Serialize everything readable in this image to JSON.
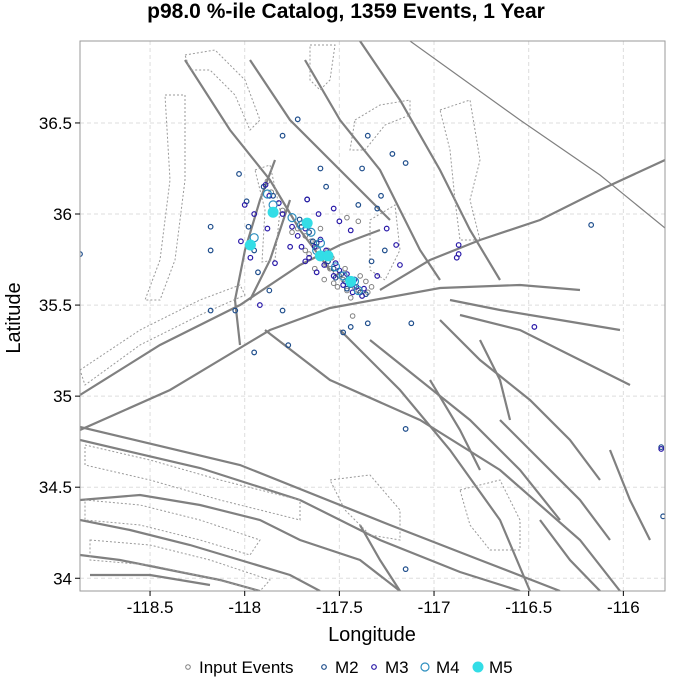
{
  "chart_data": {
    "type": "scatter",
    "title": "p98.0 %-ile Catalog, 1359 Events, 1 Year",
    "xlabel": "Longitude",
    "ylabel": "Latitude",
    "xlim": [
      -118.87,
      -115.78
    ],
    "ylim": [
      33.93,
      36.95
    ],
    "xticks": [
      -118.5,
      -118,
      -117.5,
      -117,
      -116.5,
      -116
    ],
    "yticks": [
      34,
      34.5,
      35,
      35.5,
      36,
      36.5
    ],
    "xtick_labels": [
      "-118.5",
      "-118",
      "-117.5",
      "-117",
      "-116.5",
      "-116"
    ],
    "ytick_labels": [
      "34",
      "34.5",
      "35",
      "35.5",
      "36",
      "36.5"
    ],
    "grid": true,
    "legend_position": "bottom-center",
    "series": [
      {
        "name": "Input Events",
        "color": "#808080",
        "marker": "open-circle-small",
        "points": [
          [
            -117.62,
            35.82
          ],
          [
            -117.58,
            35.75
          ],
          [
            -117.55,
            35.7
          ],
          [
            -117.5,
            35.66
          ],
          [
            -117.45,
            35.62
          ],
          [
            -117.4,
            35.58
          ],
          [
            -117.68,
            35.88
          ],
          [
            -117.7,
            35.95
          ],
          [
            -117.38,
            35.55
          ],
          [
            -117.42,
            35.6
          ],
          [
            -117.48,
            35.64
          ],
          [
            -117.52,
            35.68
          ],
          [
            -117.57,
            35.72
          ],
          [
            -117.6,
            35.78
          ],
          [
            -117.65,
            35.85
          ],
          [
            -117.72,
            35.92
          ],
          [
            -117.35,
            35.57
          ],
          [
            -117.33,
            35.6
          ],
          [
            -117.46,
            35.58
          ],
          [
            -117.53,
            35.62
          ],
          [
            -117.43,
            35.44
          ],
          [
            -117.6,
            35.92
          ],
          [
            -117.66,
            35.78
          ],
          [
            -117.56,
            35.8
          ],
          [
            -117.88,
            36.18
          ],
          [
            -117.86,
            36.12
          ],
          [
            -117.4,
            35.96
          ],
          [
            -117.46,
            35.98
          ],
          [
            -117.5,
            35.66
          ],
          [
            -117.58,
            35.64
          ],
          [
            -117.63,
            35.7
          ],
          [
            -117.44,
            35.54
          ],
          [
            -117.36,
            35.63
          ],
          [
            -117.75,
            35.9
          ],
          [
            -117.8,
            36.02
          ],
          [
            -117.54,
            35.76
          ],
          [
            -117.47,
            35.7
          ],
          [
            -117.68,
            35.8
          ],
          [
            -117.51,
            35.6
          ],
          [
            -117.39,
            35.66
          ]
        ]
      },
      {
        "name": "M2",
        "color": "#1f4e8c",
        "marker": "open-circle",
        "points": [
          [
            -117.62,
            35.84
          ],
          [
            -117.56,
            35.74
          ],
          [
            -117.49,
            35.67
          ],
          [
            -117.44,
            35.61
          ],
          [
            -117.39,
            35.57
          ],
          [
            -117.66,
            35.9
          ],
          [
            -117.71,
            35.97
          ],
          [
            -117.58,
            35.77
          ],
          [
            -117.53,
            35.7
          ],
          [
            -117.47,
            35.63
          ],
          [
            -117.64,
            35.85
          ],
          [
            -117.7,
            35.93
          ],
          [
            -117.52,
            35.65
          ],
          [
            -117.46,
            35.59
          ],
          [
            -117.36,
            35.56
          ],
          [
            -117.9,
            36.15
          ],
          [
            -117.85,
            36.1
          ],
          [
            -117.99,
            36.07
          ],
          [
            -118.03,
            36.22
          ],
          [
            -117.98,
            35.93
          ],
          [
            -117.95,
            35.8
          ],
          [
            -117.93,
            35.68
          ],
          [
            -117.87,
            35.58
          ],
          [
            -117.8,
            35.47
          ],
          [
            -117.77,
            35.28
          ],
          [
            -117.95,
            35.24
          ],
          [
            -118.18,
            35.93
          ],
          [
            -118.18,
            35.8
          ],
          [
            -118.18,
            35.47
          ],
          [
            -118.05,
            35.47
          ],
          [
            -117.4,
            36.05
          ],
          [
            -117.3,
            36.03
          ],
          [
            -117.28,
            36.1
          ],
          [
            -117.22,
            36.33
          ],
          [
            -117.15,
            36.28
          ],
          [
            -117.6,
            36.25
          ],
          [
            -117.57,
            36.15
          ],
          [
            -117.8,
            36.43
          ],
          [
            -117.72,
            36.52
          ],
          [
            -117.38,
            36.25
          ],
          [
            -117.35,
            36.43
          ],
          [
            -117.33,
            35.74
          ],
          [
            -117.26,
            35.8
          ],
          [
            -117.12,
            35.4
          ],
          [
            -117.15,
            34.82
          ],
          [
            -117.15,
            34.05
          ],
          [
            -116.17,
            35.94
          ],
          [
            -115.8,
            34.72
          ],
          [
            -115.79,
            34.34
          ],
          [
            -117.35,
            35.4
          ],
          [
            -117.44,
            35.38
          ],
          [
            -117.48,
            35.35
          ],
          [
            -118.87,
            35.78
          ],
          [
            -117.67,
            36.08
          ]
        ]
      },
      {
        "name": "M3",
        "color": "#2a1aa8",
        "marker": "open-circle",
        "points": [
          [
            -117.6,
            35.86
          ],
          [
            -117.55,
            35.76
          ],
          [
            -117.5,
            35.69
          ],
          [
            -117.45,
            35.64
          ],
          [
            -117.41,
            35.6
          ],
          [
            -117.68,
            35.92
          ],
          [
            -117.63,
            35.82
          ],
          [
            -117.58,
            35.72
          ],
          [
            -117.53,
            35.66
          ],
          [
            -117.48,
            35.61
          ],
          [
            -117.43,
            35.57
          ],
          [
            -117.38,
            35.55
          ],
          [
            -117.89,
            36.16
          ],
          [
            -117.87,
            36.1
          ],
          [
            -117.8,
            36.0
          ],
          [
            -117.75,
            35.93
          ],
          [
            -117.72,
            35.88
          ],
          [
            -117.57,
            35.8
          ],
          [
            -117.52,
            35.73
          ],
          [
            -117.46,
            35.67
          ],
          [
            -117.42,
            35.64
          ],
          [
            -117.37,
            35.59
          ],
          [
            -117.7,
            35.82
          ],
          [
            -117.66,
            35.76
          ],
          [
            -118.0,
            36.05
          ],
          [
            -117.67,
            36.08
          ],
          [
            -117.61,
            36.0
          ],
          [
            -117.25,
            35.92
          ],
          [
            -117.2,
            35.83
          ],
          [
            -117.18,
            35.72
          ],
          [
            -116.87,
            35.78
          ],
          [
            -116.87,
            35.83
          ],
          [
            -116.88,
            35.76
          ],
          [
            -117.53,
            36.03
          ],
          [
            -116.47,
            35.38
          ],
          [
            -117.62,
            35.68
          ],
          [
            -117.84,
            35.73
          ],
          [
            -118.02,
            35.85
          ],
          [
            -117.95,
            36.0
          ],
          [
            -117.88,
            35.92
          ],
          [
            -117.97,
            35.76
          ],
          [
            -117.92,
            35.5
          ],
          [
            -117.3,
            35.66
          ],
          [
            -117.44,
            35.91
          ],
          [
            -117.5,
            35.96
          ],
          [
            -115.8,
            34.71
          ],
          [
            -117.76,
            35.82
          ],
          [
            -117.82,
            36.06
          ],
          [
            -117.68,
            35.74
          ]
        ]
      },
      {
        "name": "M4",
        "color": "#2d8fbf",
        "marker": "open-circle-large",
        "points": [
          [
            -117.65,
            35.9
          ],
          [
            -117.6,
            35.84
          ],
          [
            -117.56,
            35.77
          ],
          [
            -117.52,
            35.71
          ],
          [
            -117.48,
            35.66
          ],
          [
            -117.44,
            35.62
          ],
          [
            -117.4,
            35.58
          ],
          [
            -117.7,
            35.94
          ],
          [
            -117.75,
            35.98
          ],
          [
            -117.62,
            35.8
          ],
          [
            -117.85,
            36.05
          ],
          [
            -117.95,
            35.87
          ],
          [
            -117.42,
            35.63
          ],
          [
            -117.88,
            36.11
          ]
        ]
      },
      {
        "name": "M5",
        "color": "#33dde6",
        "marker": "filled-circle",
        "points": [
          [
            -117.6,
            35.77
          ],
          [
            -117.85,
            36.01
          ],
          [
            -117.67,
            35.95
          ],
          [
            -117.97,
            35.83
          ],
          [
            -117.44,
            35.63
          ],
          [
            -117.56,
            35.77
          ]
        ]
      }
    ],
    "legend": [
      "Input Events",
      "M2",
      "M3",
      "M4",
      "M5"
    ]
  }
}
